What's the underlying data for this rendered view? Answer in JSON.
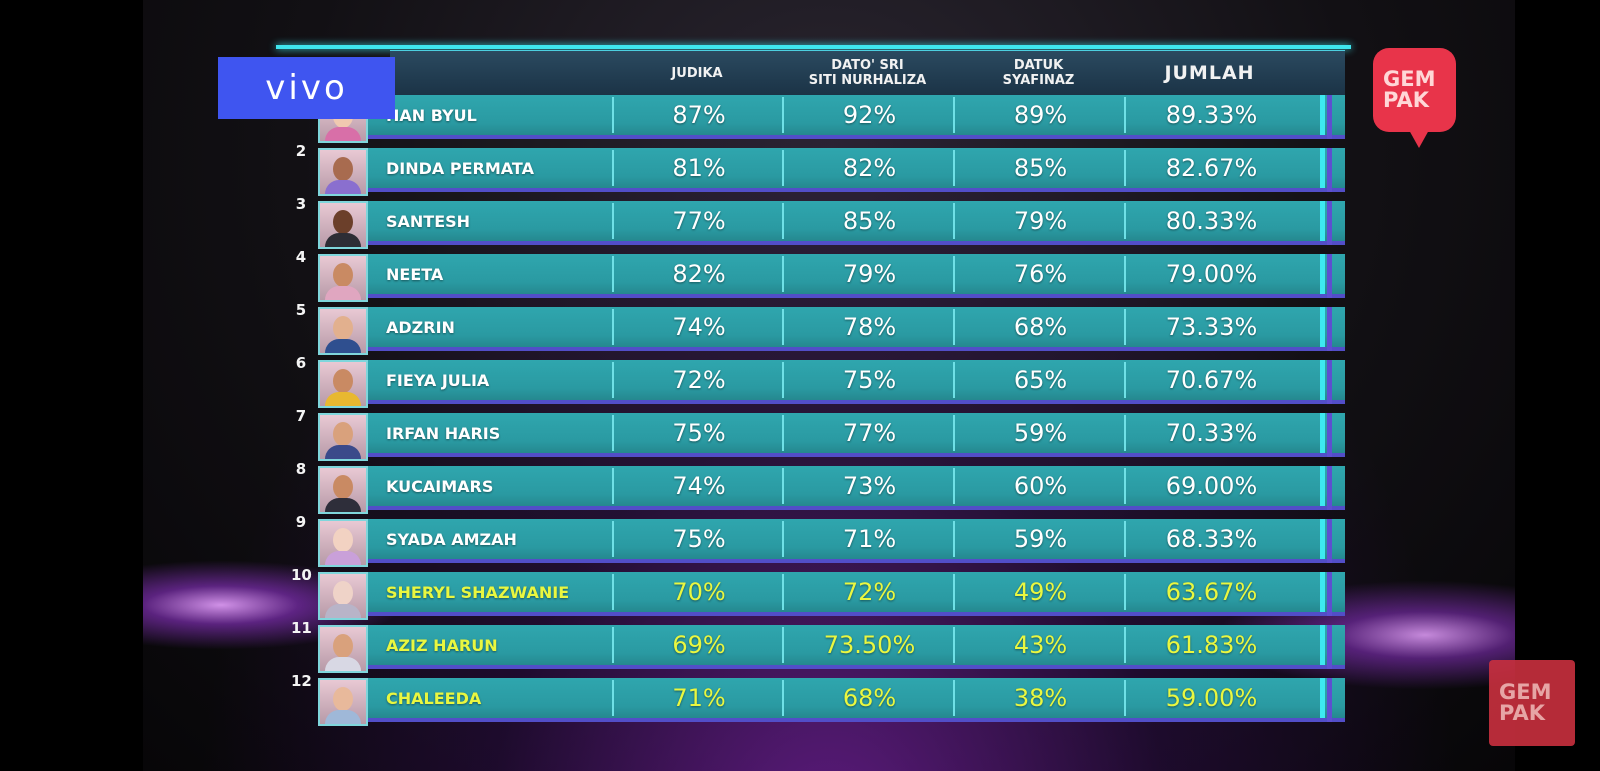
{
  "sponsor_logo": "vivo",
  "channel_logo_top": [
    "GEM",
    "PAK"
  ],
  "channel_logo_bottom": [
    "GEM",
    "PAK"
  ],
  "headers": {
    "judge1": [
      "JUDIKA"
    ],
    "judge2": [
      "DATO' SRI",
      "SITI NURHALIZA"
    ],
    "judge3": [
      "DATUK",
      "SYAFINAZ"
    ],
    "total": [
      "JUMLAH"
    ]
  },
  "highlight_color": "#e9f740",
  "rows": [
    {
      "rank": "",
      "name": "HAN BYUL",
      "j1": "87%",
      "j2": "92%",
      "j3": "89%",
      "total": "89.33%",
      "highlight": false
    },
    {
      "rank": "2",
      "name": "DINDA PERMATA",
      "j1": "81%",
      "j2": "82%",
      "j3": "85%",
      "total": "82.67%",
      "highlight": false
    },
    {
      "rank": "3",
      "name": "SANTESH",
      "j1": "77%",
      "j2": "85%",
      "j3": "79%",
      "total": "80.33%",
      "highlight": false
    },
    {
      "rank": "4",
      "name": "NEETA",
      "j1": "82%",
      "j2": "79%",
      "j3": "76%",
      "total": "79.00%",
      "highlight": false
    },
    {
      "rank": "5",
      "name": "ADZRIN",
      "j1": "74%",
      "j2": "78%",
      "j3": "68%",
      "total": "73.33%",
      "highlight": false
    },
    {
      "rank": "6",
      "name": "FIEYA JULIA",
      "j1": "72%",
      "j2": "75%",
      "j3": "65%",
      "total": "70.67%",
      "highlight": false
    },
    {
      "rank": "7",
      "name": "IRFAN HARIS",
      "j1": "75%",
      "j2": "77%",
      "j3": "59%",
      "total": "70.33%",
      "highlight": false
    },
    {
      "rank": "8",
      "name": "KUCAIMARS",
      "j1": "74%",
      "j2": "73%",
      "j3": "60%",
      "total": "69.00%",
      "highlight": false
    },
    {
      "rank": "9",
      "name": "SYADA AMZAH",
      "j1": "75%",
      "j2": "71%",
      "j3": "59%",
      "total": "68.33%",
      "highlight": false
    },
    {
      "rank": "10",
      "name": "SHERYL SHAZWANIE",
      "j1": "70%",
      "j2": "72%",
      "j3": "49%",
      "total": "63.67%",
      "highlight": true
    },
    {
      "rank": "11",
      "name": "AZIZ HARUN",
      "j1": "69%",
      "j2": "73.50%",
      "j3": "43%",
      "total": "61.83%",
      "highlight": true
    },
    {
      "rank": "12",
      "name": "CHALEEDA",
      "j1": "71%",
      "j2": "68%",
      "j3": "38%",
      "total": "59.00%",
      "highlight": true
    }
  ]
}
